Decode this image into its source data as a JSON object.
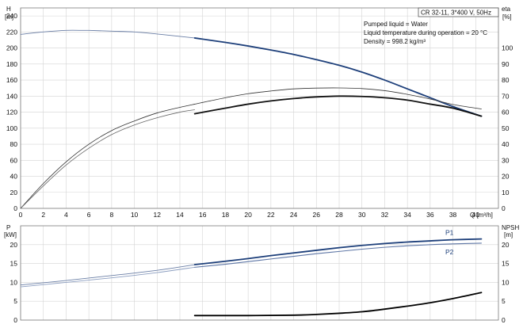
{
  "chart_data": [
    {
      "type": "line",
      "panel": "head-efficiency",
      "title_box": "CR 32-11, 3*400 V, 50Hz",
      "info_lines": [
        "Pumped liquid = Water",
        "Liquid temperature during operation = 20 °C",
        "Density = 998.2 kg/m³"
      ],
      "ylabel_left": {
        "name": "H",
        "unit": "[m]"
      },
      "ylabel_right": {
        "name": "eta",
        "unit": "[%]"
      },
      "xlabel": "Q [m³/h]",
      "xlim": [
        0,
        42
      ],
      "ylim_left": [
        0,
        250
      ],
      "ylim_right": [
        0,
        125
      ],
      "x_ticks": [
        0,
        2,
        4,
        6,
        8,
        10,
        12,
        14,
        16,
        18,
        20,
        22,
        24,
        26,
        28,
        30,
        32,
        34,
        36,
        38,
        40
      ],
      "y_ticks_left": [
        0,
        20,
        40,
        60,
        80,
        100,
        120,
        140,
        160,
        180,
        200,
        220,
        240
      ],
      "y_ticks_right": [
        0,
        10,
        20,
        30,
        40,
        50,
        60,
        70,
        80,
        90,
        100
      ],
      "grid": true,
      "series": [
        {
          "axis": "left",
          "color": "#6b7fa6",
          "width": 0.9,
          "x": [
            0,
            2,
            4,
            5.5,
            6,
            8,
            10,
            12,
            14,
            15.3
          ],
          "y": [
            217,
            220,
            222,
            222,
            222,
            221,
            220,
            217.5,
            214.5,
            212.5
          ]
        },
        {
          "axis": "left",
          "color": "#1d3f7a",
          "width": 1.8,
          "x": [
            15.3,
            18,
            20,
            22,
            24,
            26,
            28,
            30,
            32,
            34,
            36,
            38,
            40.5
          ],
          "y": [
            212.5,
            207,
            202.5,
            197.5,
            192,
            185.5,
            178.5,
            170,
            160,
            149,
            138,
            127,
            115
          ]
        },
        {
          "axis": "right",
          "color": "#333333",
          "width": 0.8,
          "x": [
            0,
            2,
            4,
            6,
            8,
            10,
            12,
            14,
            15.3
          ],
          "y": [
            0,
            15.5,
            29,
            40,
            48.5,
            54.5,
            59.5,
            63,
            65
          ]
        },
        {
          "axis": "right",
          "color": "#333333",
          "width": 0.8,
          "x": [
            15.3,
            18,
            20,
            22,
            24,
            26,
            28,
            30,
            32,
            34,
            36,
            38,
            40.5
          ],
          "y": [
            65,
            69,
            71.5,
            73.2,
            74.5,
            75,
            75.1,
            74.7,
            73.4,
            71.1,
            68.2,
            64.8,
            62
          ]
        },
        {
          "axis": "right",
          "color": "#666666",
          "width": 0.8,
          "x": [
            0,
            2,
            4,
            6,
            8,
            10,
            12,
            14,
            15.3
          ],
          "y": [
            0,
            14,
            27,
            37.5,
            46,
            52,
            56.5,
            60,
            61.5
          ]
        },
        {
          "axis": "right",
          "color": "#111111",
          "width": 1.8,
          "x": [
            15.3,
            18,
            20,
            22,
            24,
            26,
            28,
            30,
            32,
            34,
            36,
            38,
            40.5
          ],
          "y": [
            59,
            62.5,
            65,
            67,
            68.5,
            69.5,
            70,
            69.8,
            69,
            67.5,
            65,
            62.5,
            57.5
          ]
        }
      ]
    },
    {
      "type": "line",
      "panel": "power-npsh",
      "ylabel_left": {
        "name": "P",
        "unit": "[kW]"
      },
      "ylabel_right": {
        "name": "NPSH",
        "unit": "[m]"
      },
      "xlim": [
        0,
        42
      ],
      "ylim_left": [
        0,
        25
      ],
      "ylim_right": [
        0,
        25
      ],
      "y_ticks_left": [
        0,
        5,
        10,
        15,
        20
      ],
      "y_ticks_right": [
        0,
        5,
        10,
        15,
        20
      ],
      "grid": true,
      "series": [
        {
          "name": "P1",
          "axis": "left",
          "color": "#6b7fa6",
          "width": 0.9,
          "x": [
            0,
            4,
            8,
            12,
            15.3
          ],
          "y": [
            9.3,
            10.5,
            11.8,
            13.2,
            14.7
          ]
        },
        {
          "name": "P1",
          "axis": "left",
          "color": "#1d3f7a",
          "width": 1.8,
          "x": [
            15.3,
            18,
            20,
            22,
            24,
            26,
            28,
            30,
            32,
            34,
            36,
            38,
            40.5
          ],
          "y": [
            14.7,
            15.6,
            16.3,
            17.1,
            17.8,
            18.5,
            19.2,
            19.8,
            20.3,
            20.7,
            21.0,
            21.3,
            21.5
          ]
        },
        {
          "name": "P2",
          "axis": "left",
          "color": "#8c9ec0",
          "width": 0.9,
          "x": [
            0,
            4,
            8,
            12,
            15.3
          ],
          "y": [
            8.8,
            10.0,
            11.2,
            12.6,
            14.0
          ]
        },
        {
          "name": "P2",
          "axis": "left",
          "color": "#5f77a6",
          "width": 1.1,
          "x": [
            15.3,
            18,
            20,
            22,
            24,
            26,
            28,
            30,
            32,
            34,
            36,
            38,
            40.5
          ],
          "y": [
            14.0,
            14.8,
            15.5,
            16.2,
            16.9,
            17.6,
            18.2,
            18.8,
            19.3,
            19.7,
            20.0,
            20.2,
            20.4
          ]
        },
        {
          "axis": "right",
          "color": "#000000",
          "width": 1.8,
          "x": [
            15.3,
            20,
            24,
            26,
            28,
            30,
            32,
            34,
            36,
            38,
            40.5
          ],
          "y": [
            1.2,
            1.2,
            1.3,
            1.5,
            1.8,
            2.2,
            2.9,
            3.7,
            4.6,
            5.7,
            7.3
          ]
        }
      ],
      "series_labels": [
        "P1",
        "P2"
      ]
    }
  ]
}
